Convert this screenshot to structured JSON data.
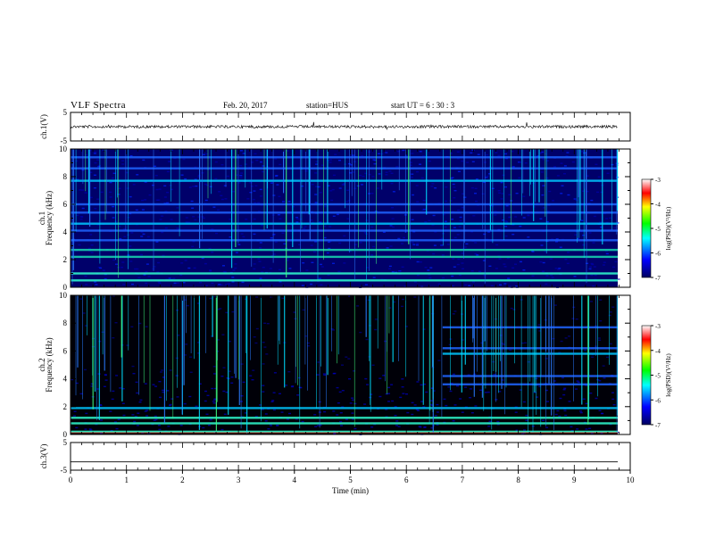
{
  "header": {
    "title": "VLF Spectra",
    "date": "Feb. 20, 2017",
    "station": "station=HUS",
    "start": "start  UT =   6 : 30 : 3"
  },
  "chart_data": [
    {
      "type": "line",
      "panel": "ch1-waveform",
      "ylabel": "ch.1(V)",
      "yticks": [
        "5",
        "-5"
      ],
      "ylim": [
        -5,
        5
      ],
      "note": "noisy broadband trace centred near 0 V"
    },
    {
      "type": "heatmap",
      "panel": "ch1-spectrogram",
      "ylabel": "ch.1\nFrequency (kHz)",
      "ylabel_top": "ch.1",
      "ylabel_main": "Frequency (kHz)",
      "yticks": [
        "0",
        "2",
        "4",
        "6",
        "8",
        "10"
      ],
      "ylim": [
        0,
        10
      ],
      "xlim": [
        0,
        9.8
      ],
      "colorbar": {
        "label": "log(PSD)(V²/Hz)",
        "ticks": [
          "-3",
          "-4",
          "-5",
          "-6",
          "-7"
        ],
        "range": [
          -7,
          -3
        ]
      },
      "bands_khz": [
        0.5,
        1.0,
        2.2,
        2.7,
        3.4,
        4.1,
        4.6,
        5.4,
        6.0,
        7.7,
        8.6,
        9.4
      ]
    },
    {
      "type": "heatmap",
      "panel": "ch2-spectrogram",
      "ylabel_top": "ch.2",
      "ylabel_main": "Frequency (kHz)",
      "yticks": [
        "0",
        "2",
        "4",
        "6",
        "8",
        "10"
      ],
      "ylim": [
        0,
        10
      ],
      "xlim": [
        0,
        9.8
      ],
      "colorbar": {
        "label": "log(PSD)(V²/Hz)",
        "ticks": [
          "-3",
          "-4",
          "-5",
          "-6",
          "-7"
        ],
        "range": [
          -7,
          -3
        ]
      },
      "bands_khz": [
        0.2,
        0.8,
        1.2,
        1.9,
        3.6,
        4.2,
        5.8,
        6.2,
        7.7
      ]
    },
    {
      "type": "line",
      "panel": "ch3-waveform",
      "ylabel": "ch.3(V)",
      "yticks": [
        "5",
        "-5"
      ],
      "ylim": [
        -5,
        5
      ],
      "xlabel": "Time (min)",
      "xticks": [
        "0",
        "1",
        "2",
        "3",
        "4",
        "5",
        "6",
        "7",
        "8",
        "9",
        "10"
      ],
      "xlim": [
        0,
        10
      ],
      "note": "flat trace at about -2 V"
    }
  ],
  "colors": {
    "background": "#ffffff",
    "axes": "#000000",
    "spec_low": "#000033",
    "spec_mid": "#0000ff",
    "spec_high": "#00ffff"
  }
}
